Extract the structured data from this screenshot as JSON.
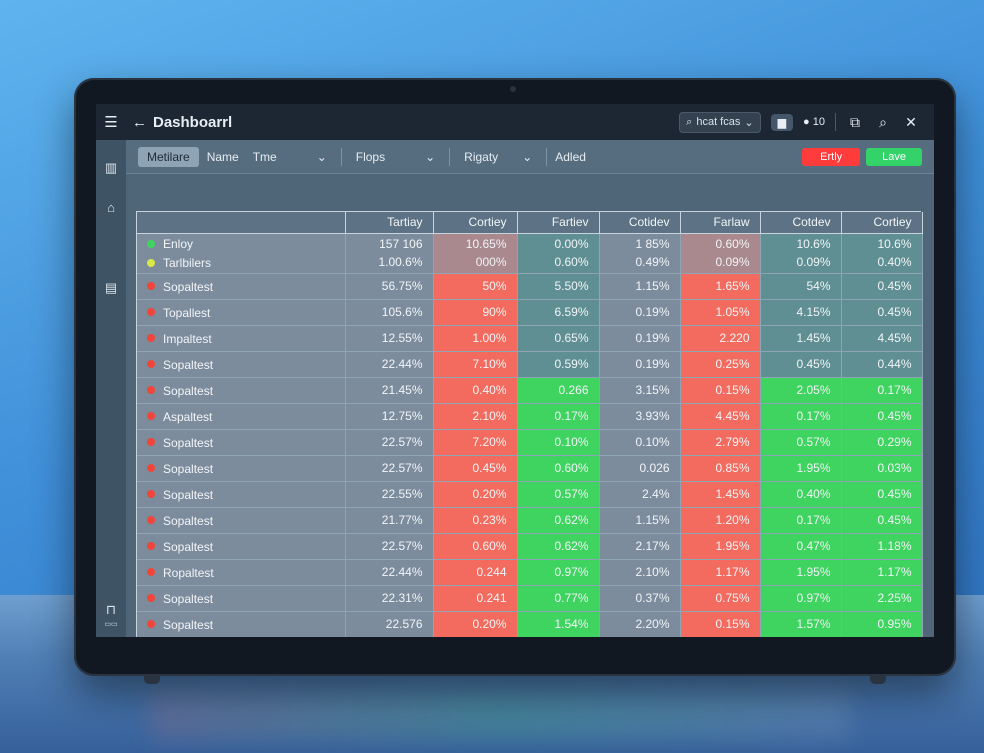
{
  "window": {
    "title": "Dashboarrl",
    "search_label": "hcat fcas",
    "pill_label": "▆",
    "count_label": "10"
  },
  "sidebar": {
    "icons": [
      "menu-icon",
      "building-icon",
      "home-icon",
      "clipboard-icon",
      "lock-icon"
    ],
    "bottom_label": "▭▭"
  },
  "filters": {
    "chip": "Metilare",
    "name": "Name",
    "time": "Tme",
    "props": "Flops",
    "rigaty": "Rigaty",
    "added": "Adled",
    "btn_red": "Ertly",
    "btn_green": "Lave"
  },
  "table": {
    "columns": [
      "",
      "Tartiay",
      "Cortiey",
      "Fartiev",
      "Cotidev",
      "Farlaw",
      "Cotdev",
      "Cortiey"
    ],
    "header_rows": [
      {
        "name": "Enloy",
        "dot": "#3fd45f",
        "values": [
          "157 106",
          "10.65%",
          "0.00%",
          "1 85%",
          "0.60%",
          "10.6%",
          "10.6%"
        ]
      },
      {
        "name": "Tarlbilers",
        "dot": "#d8e84a",
        "values": [
          "1.00.6%",
          "000%",
          "0.60%",
          "0.49%",
          "0.09%",
          "0.09%",
          "0.40%"
        ]
      }
    ],
    "rows": [
      {
        "name": "Sopaltest",
        "values": [
          "56.75%",
          "50%",
          "5.50%",
          "1.15%",
          "1.65%",
          "54%",
          "0.45%"
        ]
      },
      {
        "name": "Topallest",
        "values": [
          "105.6%",
          "90%",
          "6.59%",
          "0.19%",
          "1.05%",
          "4.15%",
          "0.45%"
        ]
      },
      {
        "name": "Impaltest",
        "values": [
          "12.55%",
          "1.00%",
          "0.65%",
          "0.19%",
          "2.220",
          "1.45%",
          "4.45%"
        ]
      },
      {
        "name": "Sopaltest",
        "values": [
          "22.44%",
          "7.10%",
          "0.59%",
          "0.19%",
          "0.25%",
          "0.45%",
          "0.44%"
        ]
      },
      {
        "name": "Sopaltest",
        "values": [
          "21.45%",
          "0.40%",
          "0.266",
          "3.15%",
          "0.15%",
          "2.05%",
          "0.17%"
        ]
      },
      {
        "name": "Aspaltest",
        "values": [
          "12.75%",
          "2.10%",
          "0.17%",
          "3.93%",
          "4.45%",
          "0.17%",
          "0.45%"
        ]
      },
      {
        "name": "Sopaltest",
        "values": [
          "22.57%",
          "7.20%",
          "0.10%",
          "0.10%",
          "2.79%",
          "0.57%",
          "0.29%"
        ]
      },
      {
        "name": "Sopaltest",
        "values": [
          "22.57%",
          "0.45%",
          "0.60%",
          "0.026",
          "0.85%",
          "1.95%",
          "0.03%"
        ]
      },
      {
        "name": "Sopaltest",
        "values": [
          "22.55%",
          "0.20%",
          "0.57%",
          "2.4%",
          "1.45%",
          "0.40%",
          "0.45%"
        ]
      },
      {
        "name": "Sopaltest",
        "values": [
          "21.77%",
          "0.23%",
          "0.62%",
          "1.15%",
          "1.20%",
          "0.17%",
          "0.45%"
        ]
      },
      {
        "name": "Sopaltest",
        "values": [
          "22.57%",
          "0.60%",
          "0.62%",
          "2.17%",
          "1.95%",
          "0.47%",
          "1.18%"
        ]
      },
      {
        "name": "Ropaltest",
        "values": [
          "22.44%",
          "0.244",
          "0.97%",
          "2.10%",
          "1.17%",
          "1.95%",
          "1.17%"
        ]
      },
      {
        "name": "Sopaltest",
        "values": [
          "22.31%",
          "0.241",
          "0.77%",
          "0.37%",
          "0.75%",
          "0.97%",
          "2.25%"
        ]
      },
      {
        "name": "Sopaltest",
        "values": [
          "22.576",
          "0.20%",
          "1.54%",
          "2.20%",
          "0.15%",
          "1.57%",
          "0.95%"
        ]
      }
    ],
    "row_dot_color": "#f0463a"
  },
  "colors": {
    "red_cell": "#f26b5e",
    "green_cell": "#3fd45f",
    "teal_cell": "#5f8f92",
    "grey_cell": "#7d8c9d"
  }
}
